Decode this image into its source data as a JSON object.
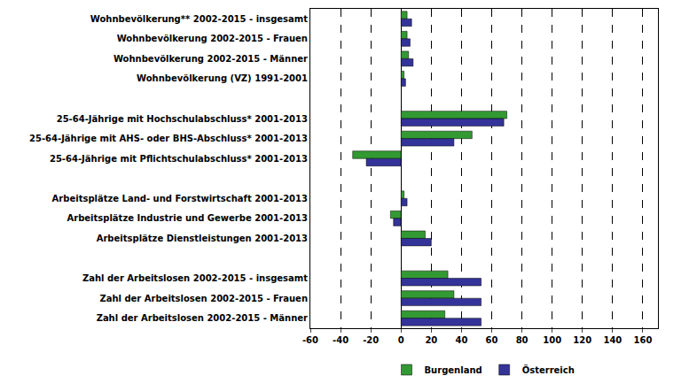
{
  "chart_data": {
    "type": "bar",
    "orientation": "horizontal",
    "grid": true,
    "legend": "bottom",
    "categories": [
      "Wohnbevölkerung** 2002-2015 - insgesamt",
      "Wohnbevölkerung 2002-2015 - Frauen",
      "Wohnbevölkerung 2002-2015 - Männer",
      "Wohnbevölkerung (VZ) 1991-2001",
      null,
      "25-64-Jährige mit Hochschulabschluss* 2001-2013",
      "25-64-Jährige mit AHS- oder BHS-Abschluss* 2001-2013",
      "25-64-Jährige mit Pflichtschulabschluss* 2001-2013",
      null,
      "Arbeitsplätze Land- und Forstwirtschaft 2001-2013",
      "Arbeitsplätze Industrie und Gewerbe 2001-2013",
      "Arbeitsplätze Dienstleistungen 2001-2013",
      null,
      "Zahl der Arbeitslosen 2002-2015 - insgesamt",
      "Zahl der Arbeitslosen 2002-2015 - Frauen",
      "Zahl der Arbeitslosen 2002-2015 - Männer"
    ],
    "series": [
      {
        "name": "Burgenland",
        "color": "#339933",
        "values": [
          4,
          4,
          5,
          2,
          null,
          70,
          47,
          -32,
          null,
          2,
          -7,
          16,
          null,
          31,
          35,
          29
        ]
      },
      {
        "name": "Österreich",
        "color": "#333399",
        "values": [
          7,
          6,
          8,
          3,
          null,
          68,
          35,
          -23,
          null,
          4,
          -5,
          20,
          null,
          53,
          53,
          53
        ]
      }
    ],
    "xlim": [
      -60,
      170
    ],
    "xticks": [
      -60,
      -40,
      -20,
      0,
      20,
      40,
      60,
      80,
      100,
      120,
      140,
      160
    ]
  }
}
